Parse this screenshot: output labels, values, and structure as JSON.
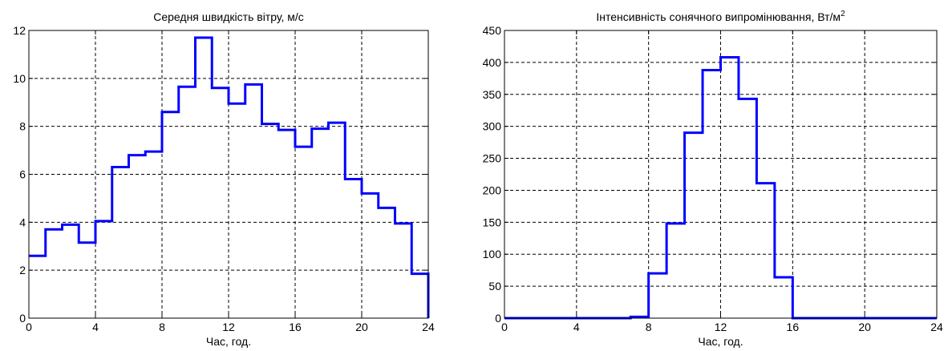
{
  "chart_data": [
    {
      "type": "line",
      "style": "step",
      "title": "Середня швидкість вітру, м/с",
      "title_sup": "",
      "xlabel": "Час, год.",
      "ylabel": "",
      "xlim": [
        0,
        24
      ],
      "ylim": [
        0,
        12
      ],
      "xticks": [
        0,
        4,
        8,
        12,
        16,
        20,
        24
      ],
      "yticks": [
        0,
        2,
        4,
        6,
        8,
        10,
        12
      ],
      "grid": true,
      "line_color": "#0000ff",
      "series": [
        {
          "x": [
            0,
            1,
            2,
            3,
            4,
            5,
            6,
            7,
            8,
            9,
            10,
            11,
            12,
            13,
            14,
            15,
            16,
            17,
            18,
            19,
            20,
            21,
            22,
            23
          ],
          "values": [
            2.6,
            3.7,
            3.9,
            3.15,
            4.05,
            6.3,
            6.8,
            6.95,
            8.6,
            9.65,
            11.7,
            9.6,
            8.95,
            9.75,
            8.1,
            7.85,
            7.15,
            7.9,
            8.15,
            5.8,
            5.2,
            4.6,
            3.95,
            1.85
          ]
        }
      ]
    },
    {
      "type": "line",
      "style": "step",
      "title": "Інтенсивність сонячного випромінювання, Вт/м",
      "title_sup": "2",
      "xlabel": "Час, год.",
      "ylabel": "",
      "xlim": [
        0,
        24
      ],
      "ylim": [
        0,
        450
      ],
      "xticks": [
        0,
        4,
        8,
        12,
        16,
        20,
        24
      ],
      "yticks": [
        0,
        50,
        100,
        150,
        200,
        250,
        300,
        350,
        400,
        450
      ],
      "grid": true,
      "line_color": "#0000ff",
      "series": [
        {
          "x": [
            0,
            1,
            2,
            3,
            4,
            5,
            6,
            7,
            8,
            9,
            10,
            11,
            12,
            13,
            14,
            15,
            16,
            17,
            18,
            19,
            20,
            21,
            22,
            23
          ],
          "values": [
            0,
            0,
            0,
            0,
            0,
            0,
            0,
            2,
            70,
            148,
            290,
            388,
            408,
            343,
            211,
            64,
            0,
            0,
            0,
            0,
            0,
            0,
            0,
            0
          ]
        }
      ]
    }
  ]
}
